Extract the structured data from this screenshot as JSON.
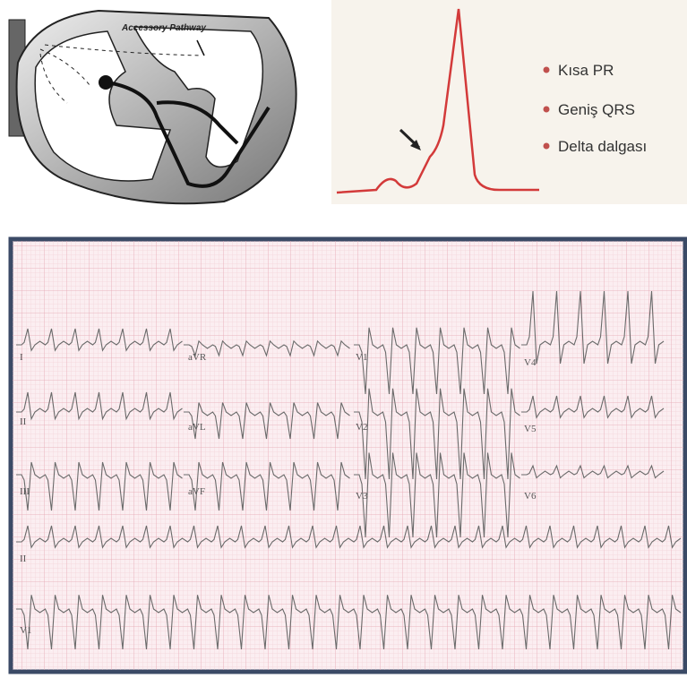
{
  "heart_diagram": {
    "label": "Accessory Pathway"
  },
  "delta_wave": {
    "bullets": [
      "Kısa PR",
      "Geniş QRS",
      "Delta dalgası"
    ]
  },
  "ecg": {
    "leads": [
      "I",
      "aVR",
      "V1",
      "V4",
      "II",
      "aVL",
      "V2",
      "V5",
      "III",
      "aVF",
      "V3",
      "V6",
      "II",
      "V1"
    ]
  }
}
